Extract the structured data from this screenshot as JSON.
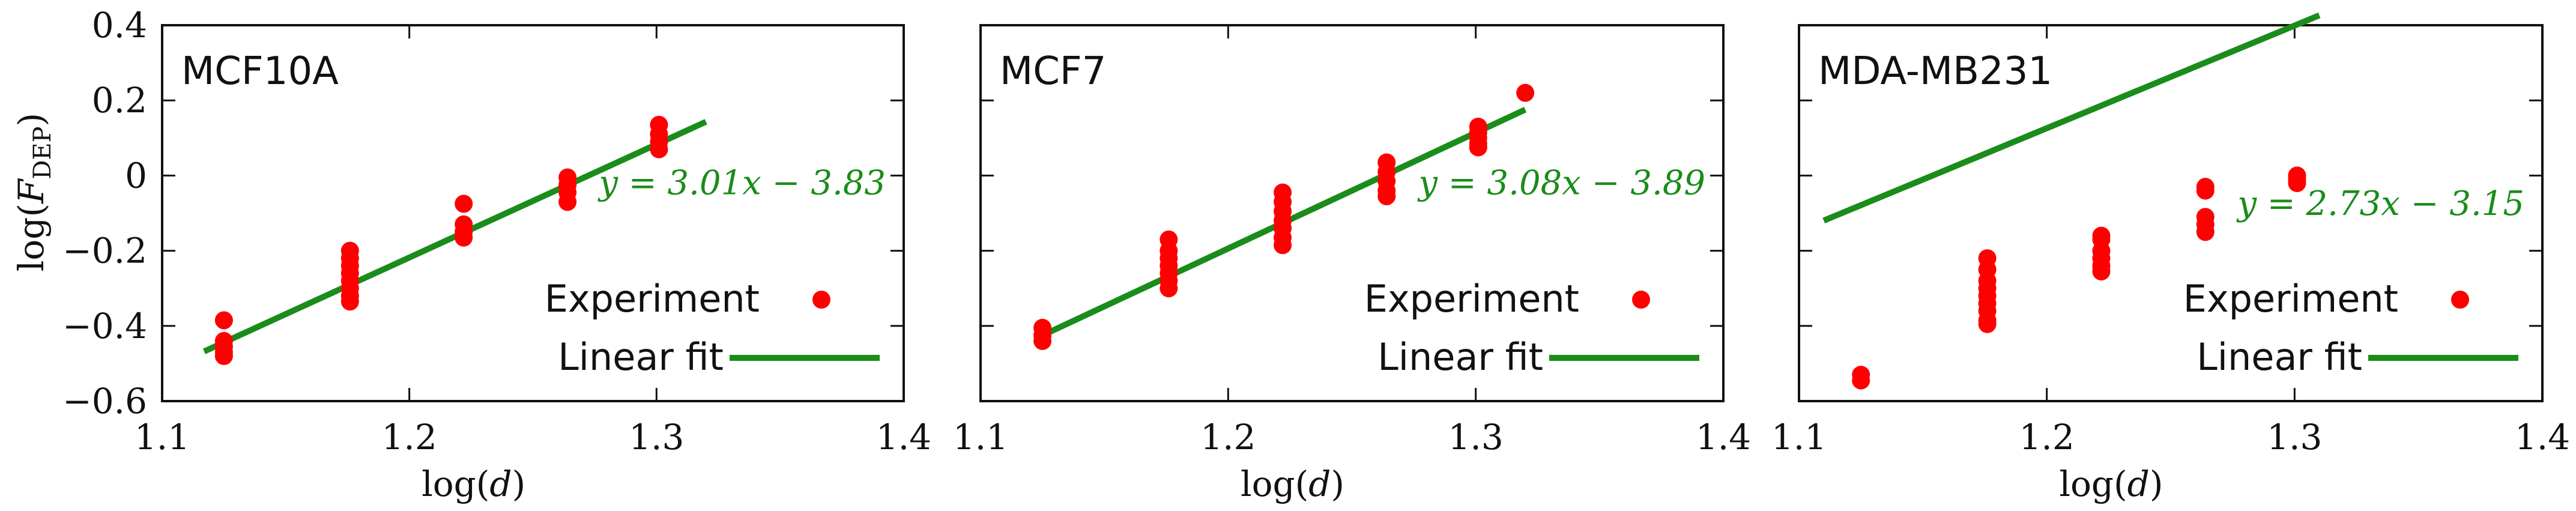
{
  "figure": {
    "ylabel": "log(F_DEP)",
    "ylabel_main": "log(",
    "ylabel_var": "F",
    "ylabel_sub": "DEP",
    "ylabel_close": ")",
    "xlabel": "log(d)",
    "colors": {
      "points": "#ff0000",
      "fit": "#1a8c1a",
      "frame": "#111111"
    }
  },
  "chart_data": [
    {
      "type": "scatter",
      "title": "MCF10A",
      "xlabel": "log(d)",
      "ylabel": "log(F_DEP)",
      "xlim": [
        1.1,
        1.4
      ],
      "ylim": [
        -0.6,
        0.4
      ],
      "xticks": [
        "1.1",
        "1.2",
        "1.3",
        "1.4"
      ],
      "yticks": [
        "-0.6",
        "-0.4",
        "-0.2",
        "0",
        "0.2",
        "0.4"
      ],
      "legend": [
        "Experiment",
        "Linear fit"
      ],
      "legend_position": "bottom-right",
      "fit": {
        "slope": 3.01,
        "intercept": -3.83,
        "x_range": [
          1.117,
          1.32
        ],
        "equation": "y = 3.01x − 3.83"
      },
      "points": [
        [
          1.125,
          -0.385
        ],
        [
          1.125,
          -0.44
        ],
        [
          1.125,
          -0.455
        ],
        [
          1.125,
          -0.47
        ],
        [
          1.125,
          -0.48
        ],
        [
          1.176,
          -0.2
        ],
        [
          1.176,
          -0.22
        ],
        [
          1.176,
          -0.24
        ],
        [
          1.176,
          -0.26
        ],
        [
          1.176,
          -0.28
        ],
        [
          1.176,
          -0.3
        ],
        [
          1.176,
          -0.32
        ],
        [
          1.176,
          -0.335
        ],
        [
          1.222,
          -0.075
        ],
        [
          1.222,
          -0.13
        ],
        [
          1.222,
          -0.15
        ],
        [
          1.222,
          -0.165
        ],
        [
          1.264,
          -0.005
        ],
        [
          1.264,
          -0.025
        ],
        [
          1.264,
          -0.045
        ],
        [
          1.264,
          -0.07
        ],
        [
          1.301,
          0.135
        ],
        [
          1.301,
          0.11
        ],
        [
          1.301,
          0.09
        ],
        [
          1.301,
          0.07
        ]
      ]
    },
    {
      "type": "scatter",
      "title": "MCF7",
      "xlabel": "log(d)",
      "ylabel": "log(F_DEP)",
      "xlim": [
        1.1,
        1.4
      ],
      "ylim": [
        -0.6,
        0.4
      ],
      "xticks": [
        "1.1",
        "1.2",
        "1.3",
        "1.4"
      ],
      "yticks": [
        "-0.6",
        "-0.4",
        "-0.2",
        "0",
        "0.2",
        "0.4"
      ],
      "legend": [
        "Experiment",
        "Linear fit"
      ],
      "legend_position": "bottom-right",
      "fit": {
        "slope": 3.08,
        "intercept": -3.89,
        "x_range": [
          1.124,
          1.32
        ],
        "equation": "y = 3.08x − 3.89"
      },
      "points": [
        [
          1.125,
          -0.405
        ],
        [
          1.125,
          -0.425
        ],
        [
          1.125,
          -0.44
        ],
        [
          1.176,
          -0.17
        ],
        [
          1.176,
          -0.2
        ],
        [
          1.176,
          -0.22
        ],
        [
          1.176,
          -0.24
        ],
        [
          1.176,
          -0.26
        ],
        [
          1.176,
          -0.28
        ],
        [
          1.176,
          -0.3
        ],
        [
          1.222,
          -0.045
        ],
        [
          1.222,
          -0.07
        ],
        [
          1.222,
          -0.095
        ],
        [
          1.222,
          -0.12
        ],
        [
          1.222,
          -0.14
        ],
        [
          1.222,
          -0.165
        ],
        [
          1.222,
          -0.185
        ],
        [
          1.264,
          0.035
        ],
        [
          1.264,
          0.01
        ],
        [
          1.264,
          -0.015
        ],
        [
          1.264,
          -0.04
        ],
        [
          1.264,
          -0.055
        ],
        [
          1.301,
          0.13
        ],
        [
          1.301,
          0.115
        ],
        [
          1.301,
          0.1
        ],
        [
          1.301,
          0.085
        ],
        [
          1.301,
          0.075
        ],
        [
          1.32,
          0.22
        ]
      ]
    },
    {
      "type": "scatter",
      "title": "MDA-MB231",
      "xlabel": "log(d)",
      "ylabel": "log(F_DEP)",
      "xlim": [
        1.1,
        1.4
      ],
      "ylim": [
        -0.6,
        0.4
      ],
      "xticks": [
        "1.1",
        "1.2",
        "1.3",
        "1.4"
      ],
      "yticks": [
        "-0.6",
        "-0.4",
        "-0.2",
        "0",
        "0.2",
        "0.4"
      ],
      "legend": [
        "Experiment",
        "Linear fit"
      ],
      "legend_position": "bottom-right",
      "fit": {
        "slope": 2.73,
        "intercept": -3.15,
        "x_range": [
          1.11,
          1.31
        ],
        "equation": "y = 2.73x − 3.15"
      },
      "points": [
        [
          1.125,
          -0.53
        ],
        [
          1.125,
          -0.545
        ],
        [
          1.176,
          -0.22
        ],
        [
          1.176,
          -0.25
        ],
        [
          1.176,
          -0.28
        ],
        [
          1.176,
          -0.3
        ],
        [
          1.176,
          -0.32
        ],
        [
          1.176,
          -0.34
        ],
        [
          1.176,
          -0.36
        ],
        [
          1.176,
          -0.385
        ],
        [
          1.176,
          -0.395
        ],
        [
          1.222,
          -0.16
        ],
        [
          1.222,
          -0.17
        ],
        [
          1.222,
          -0.2
        ],
        [
          1.222,
          -0.22
        ],
        [
          1.222,
          -0.24
        ],
        [
          1.222,
          -0.255
        ],
        [
          1.264,
          -0.03
        ],
        [
          1.264,
          -0.04
        ],
        [
          1.264,
          -0.11
        ],
        [
          1.264,
          -0.13
        ],
        [
          1.264,
          -0.15
        ],
        [
          1.301,
          0.0
        ],
        [
          1.301,
          -0.01
        ],
        [
          1.301,
          -0.02
        ]
      ]
    }
  ]
}
